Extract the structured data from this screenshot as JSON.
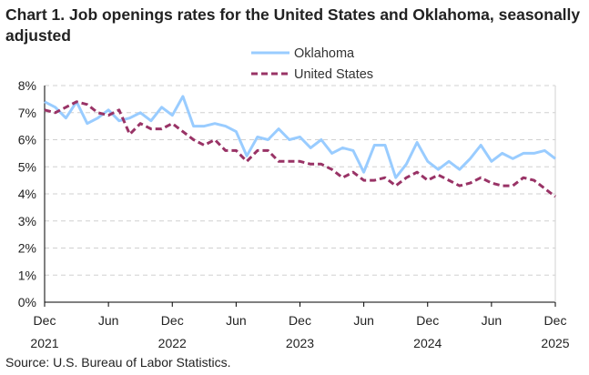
{
  "chart_data": {
    "type": "line",
    "title": "Chart 1. Job openings rates for the United States and Oklahoma, seasonally adjusted",
    "source": "Source: U.S. Bureau of Labor Statistics.",
    "xlabel": "",
    "ylabel": "",
    "ylim": [
      0,
      8
    ],
    "y_ticks": [
      "0%",
      "1%",
      "2%",
      "3%",
      "4%",
      "5%",
      "6%",
      "7%",
      "8%"
    ],
    "x_ticks": [
      {
        "month": "Dec",
        "year": "2021",
        "index": 0
      },
      {
        "month": "Jun",
        "year": "",
        "index": 6
      },
      {
        "month": "Dec",
        "year": "2022",
        "index": 12
      },
      {
        "month": "Jun",
        "year": "",
        "index": 18
      },
      {
        "month": "Dec",
        "year": "2023",
        "index": 24
      },
      {
        "month": "Jun",
        "year": "",
        "index": 30
      },
      {
        "month": "Dec",
        "year": "2024",
        "index": 36
      },
      {
        "month": "Jun",
        "year": "",
        "index": 42
      },
      {
        "month": "Dec",
        "year": "2025",
        "index": 48
      }
    ],
    "x_range": [
      "Dec 2021",
      "Dec 2025"
    ],
    "grid": "horizontal dashed",
    "legend": "top-center",
    "series": [
      {
        "name": "Oklahoma",
        "color": "#99ccff",
        "style": "solid",
        "values": [
          7.4,
          7.2,
          6.8,
          7.4,
          6.6,
          6.8,
          7.1,
          6.7,
          6.8,
          7.0,
          6.7,
          7.2,
          6.9,
          7.6,
          6.5,
          6.5,
          6.6,
          6.5,
          6.3,
          5.4,
          6.1,
          6.0,
          6.4,
          6.0,
          6.1,
          5.7,
          6.0,
          5.5,
          5.7,
          5.6,
          4.8,
          5.8,
          5.8,
          4.6,
          5.1,
          5.9,
          5.2,
          4.9,
          5.2,
          4.9,
          5.3,
          5.8,
          5.2,
          5.5,
          5.3,
          5.5,
          5.5,
          5.6,
          5.3
        ]
      },
      {
        "name": "United States",
        "color": "#993366",
        "style": "dashed",
        "values": [
          7.1,
          7.0,
          7.2,
          7.4,
          7.3,
          7.0,
          6.9,
          7.1,
          6.2,
          6.6,
          6.4,
          6.4,
          6.6,
          6.3,
          6.0,
          5.8,
          6.0,
          5.6,
          5.6,
          5.2,
          5.6,
          5.6,
          5.2,
          5.2,
          5.2,
          5.1,
          5.1,
          4.9,
          4.6,
          4.8,
          4.5,
          4.5,
          4.6,
          4.3,
          4.6,
          4.8,
          4.5,
          4.7,
          4.5,
          4.3,
          4.4,
          4.6,
          4.4,
          4.3,
          4.3,
          4.6,
          4.5,
          4.2,
          3.9
        ]
      }
    ]
  }
}
